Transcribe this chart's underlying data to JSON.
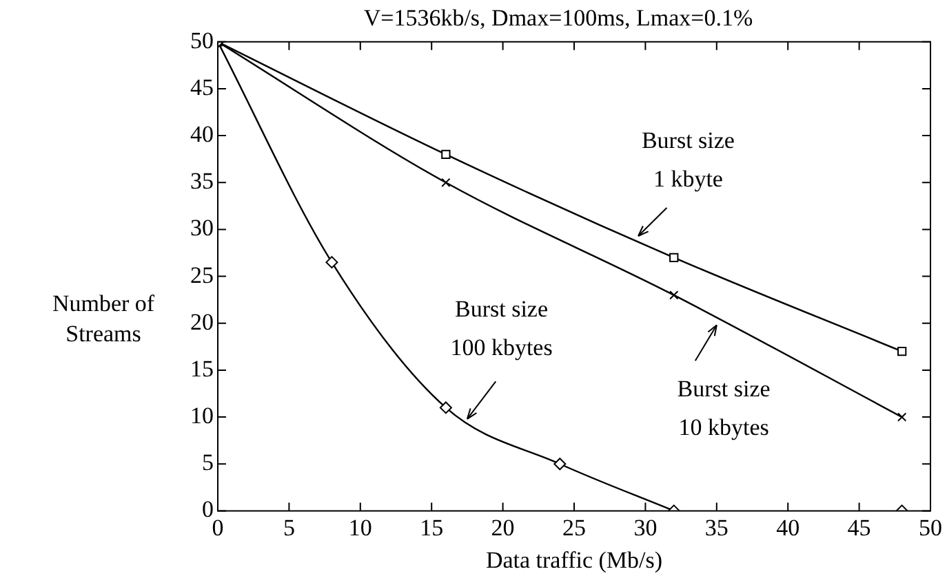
{
  "chart_data": {
    "type": "line",
    "title": "V=1536kb/s, Dmax=100ms, Lmax=0.1%",
    "xlabel": "Data traffic (Mb/s)",
    "ylabel": "Number of\nStreams",
    "xlim": [
      0,
      50
    ],
    "xticks": [
      0,
      5,
      10,
      15,
      20,
      25,
      30,
      35,
      40,
      45,
      50
    ],
    "ylim": [
      0,
      50
    ],
    "yticks": [
      0,
      5,
      10,
      15,
      20,
      25,
      30,
      35,
      40,
      45,
      50
    ],
    "grid": false,
    "legend": false,
    "series": [
      {
        "type": "line",
        "color": "#000000",
        "marker": "square",
        "x": [
          0,
          16,
          32,
          48
        ],
        "values": [
          50,
          38,
          27,
          17
        ]
      },
      {
        "type": "line",
        "color": "#000000",
        "marker": "cross",
        "x": [
          0,
          16,
          32,
          48
        ],
        "values": [
          50,
          35,
          23,
          10
        ]
      },
      {
        "type": "line",
        "color": "#000000",
        "marker": "diamond",
        "x": [
          0,
          8,
          16,
          24,
          32
        ],
        "values": [
          50,
          26.5,
          11,
          5,
          0
        ]
      },
      {
        "type": "scatter",
        "color": "#000000",
        "marker": "diamond",
        "x": [
          48
        ],
        "values": [
          0
        ]
      }
    ],
    "annotations": [
      {
        "text": "Burst size\n1 kbyte",
        "x": 29.5,
        "y": 29.3
      },
      {
        "text": "Burst size\n10 kbytes",
        "x": 35,
        "y": 19.8
      },
      {
        "text": "Burst size\n100 kbytes",
        "x": 17.5,
        "y": 9.8
      }
    ]
  }
}
